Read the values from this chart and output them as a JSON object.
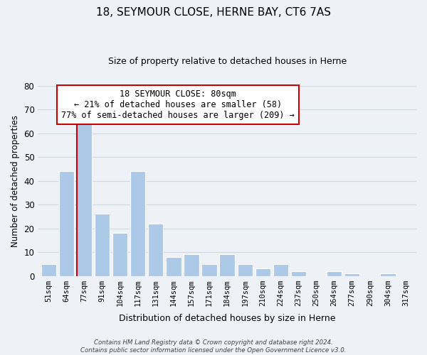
{
  "title": "18, SEYMOUR CLOSE, HERNE BAY, CT6 7AS",
  "subtitle": "Size of property relative to detached houses in Herne",
  "xlabel": "Distribution of detached houses by size in Herne",
  "ylabel": "Number of detached properties",
  "bar_labels": [
    "51sqm",
    "64sqm",
    "77sqm",
    "91sqm",
    "104sqm",
    "117sqm",
    "131sqm",
    "144sqm",
    "157sqm",
    "171sqm",
    "184sqm",
    "197sqm",
    "210sqm",
    "224sqm",
    "237sqm",
    "250sqm",
    "264sqm",
    "277sqm",
    "290sqm",
    "304sqm",
    "317sqm"
  ],
  "bar_values": [
    5,
    44,
    65,
    26,
    18,
    44,
    22,
    8,
    9,
    5,
    9,
    5,
    3,
    5,
    2,
    0,
    2,
    1,
    0,
    1,
    0
  ],
  "bar_color": "#adc9e8",
  "bar_edge_color": "#ffffff",
  "grid_color": "#d0d8e0",
  "background_color": "#eef2f7",
  "annotation_box_color": "#ffffff",
  "annotation_border_color": "#cc0000",
  "annotation_text_line1": "18 SEYMOUR CLOSE: 80sqm",
  "annotation_text_line2": "← 21% of detached houses are smaller (58)",
  "annotation_text_line3": "77% of semi-detached houses are larger (209) →",
  "redline_bar_index": 2,
  "ylim": [
    0,
    80
  ],
  "yticks": [
    0,
    10,
    20,
    30,
    40,
    50,
    60,
    70,
    80
  ],
  "footer_line1": "Contains HM Land Registry data © Crown copyright and database right 2024.",
  "footer_line2": "Contains public sector information licensed under the Open Government Licence v3.0."
}
